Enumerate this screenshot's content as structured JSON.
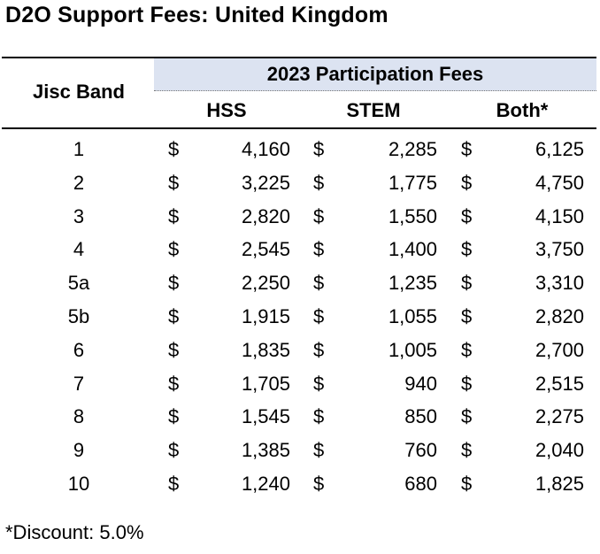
{
  "title": "D2O Support Fees: United Kingdom",
  "header": {
    "band_label": "Jisc Band",
    "group_label": "2023 Participation Fees",
    "columns": [
      "HSS",
      "STEM",
      "Both*"
    ]
  },
  "currency_symbol": "$",
  "rows": [
    {
      "band": "1",
      "hss": "4,160",
      "stem": "2,285",
      "both": "6,125"
    },
    {
      "band": "2",
      "hss": "3,225",
      "stem": "1,775",
      "both": "4,750"
    },
    {
      "band": "3",
      "hss": "2,820",
      "stem": "1,550",
      "both": "4,150"
    },
    {
      "band": "4",
      "hss": "2,545",
      "stem": "1,400",
      "both": "3,750"
    },
    {
      "band": "5a",
      "hss": "2,250",
      "stem": "1,235",
      "both": "3,310"
    },
    {
      "band": "5b",
      "hss": "1,915",
      "stem": "1,055",
      "both": "2,820"
    },
    {
      "band": "6",
      "hss": "1,835",
      "stem": "1,005",
      "both": "2,700"
    },
    {
      "band": "7",
      "hss": "1,705",
      "stem": "940",
      "both": "2,515"
    },
    {
      "band": "8",
      "hss": "1,545",
      "stem": "850",
      "both": "2,275"
    },
    {
      "band": "9",
      "hss": "1,385",
      "stem": "760",
      "both": "2,040"
    },
    {
      "band": "10",
      "hss": "1,240",
      "stem": "680",
      "both": "1,825"
    }
  ],
  "footnote": "*Discount: 5.0%",
  "colors": {
    "header_band_bg": "#dce3f1",
    "rule": "#000000"
  }
}
